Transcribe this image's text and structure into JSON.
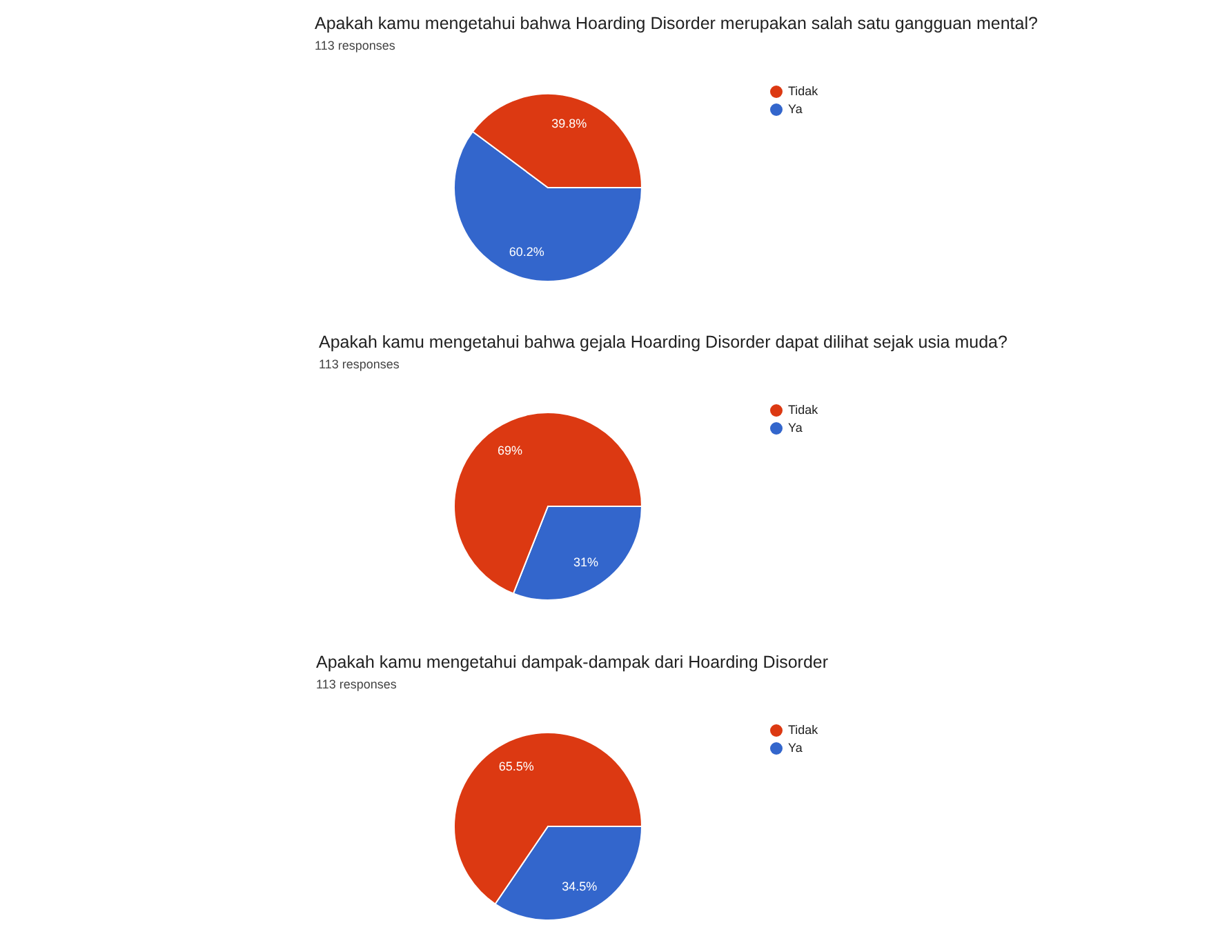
{
  "chart_data": [
    {
      "type": "pie",
      "title": "Apakah kamu mengetahui bahwa Hoarding Disorder merupakan salah satu gangguan mental?",
      "subtitle": "113 responses",
      "categories": [
        "Ya",
        "Tidak"
      ],
      "values": [
        60.2,
        39.8
      ],
      "colors": [
        "#3366cc",
        "#dc3912"
      ],
      "value_labels": [
        "60.2%",
        "39.8%"
      ],
      "legend": "right"
    },
    {
      "type": "pie",
      "title": "Apakah kamu mengetahui bahwa gejala Hoarding Disorder dapat dilihat sejak usia muda?",
      "subtitle": "113 responses",
      "categories": [
        "Ya",
        "Tidak"
      ],
      "values": [
        31,
        69
      ],
      "colors": [
        "#3366cc",
        "#dc3912"
      ],
      "value_labels": [
        "31%",
        "69%"
      ],
      "legend": "right"
    },
    {
      "type": "pie",
      "title": "Apakah kamu mengetahui dampak-dampak dari Hoarding Disorder",
      "subtitle": "113 responses",
      "categories": [
        "Ya",
        "Tidak"
      ],
      "values": [
        34.5,
        65.5
      ],
      "colors": [
        "#3366cc",
        "#dc3912"
      ],
      "value_labels": [
        "34.5%",
        "65.5%"
      ],
      "legend": "right"
    }
  ]
}
